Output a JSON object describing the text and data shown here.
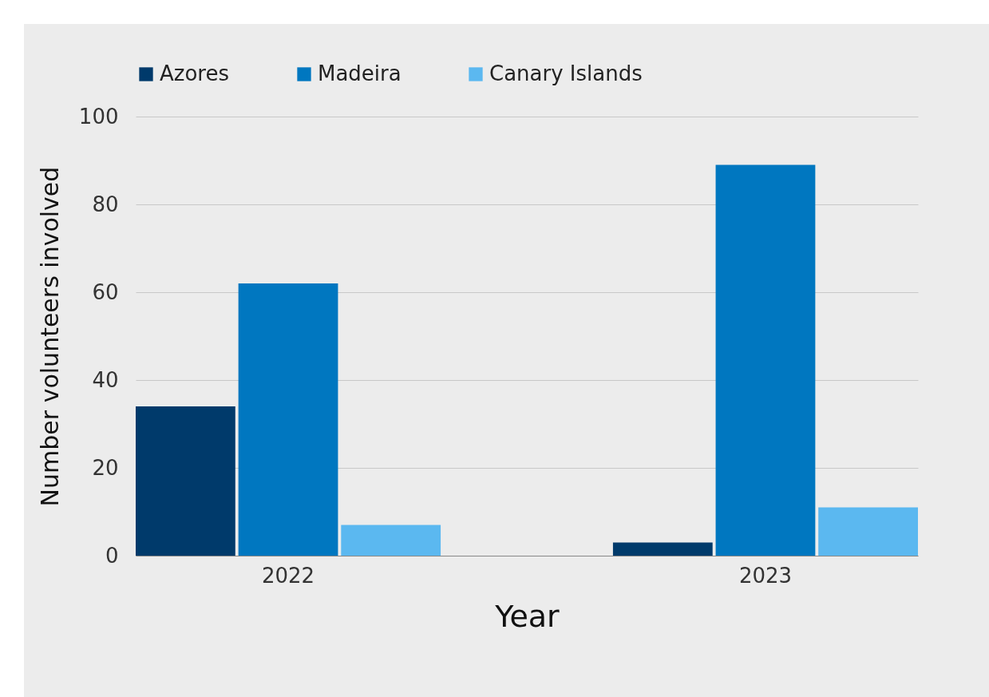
{
  "chart_data": {
    "type": "bar",
    "xlabel": "Year",
    "ylabel": "Number volunteers involved",
    "categories": [
      "2022",
      "2023"
    ],
    "series": [
      {
        "name": "Azores",
        "color": "#003a6b",
        "values": [
          34,
          3
        ]
      },
      {
        "name": "Madeira",
        "color": "#0077c0",
        "values": [
          62,
          89
        ]
      },
      {
        "name": "Canary Islands",
        "color": "#5bb8f0",
        "values": [
          7,
          11
        ]
      }
    ],
    "ylim": [
      0,
      100
    ],
    "yticks": [
      0,
      20,
      40,
      60,
      80,
      100
    ],
    "grid": "y",
    "legend": "top"
  }
}
